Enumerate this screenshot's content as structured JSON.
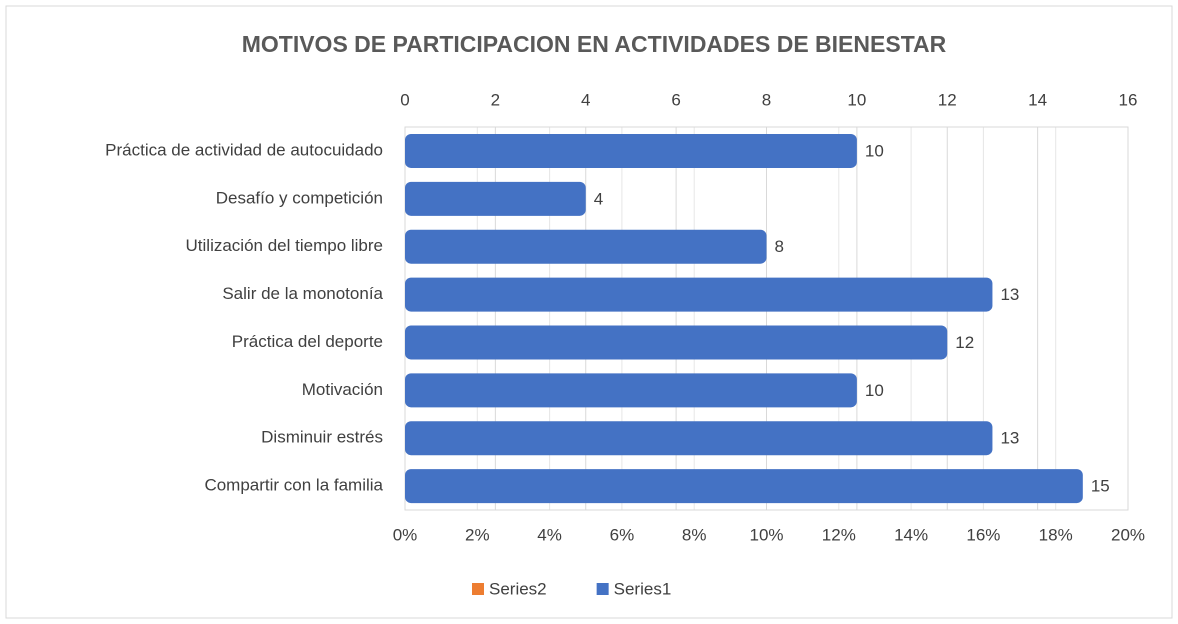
{
  "chart_data": {
    "type": "bar",
    "orientation": "horizontal",
    "title": "MOTIVOS DE PARTICIPACION EN ACTIVIDADES DE BIENESTAR",
    "categories": [
      "Práctica de actividad de autocuidado",
      "Desafío y competición",
      "Utilización del tiempo libre",
      "Salir de la monotonía",
      "Práctica del deporte",
      "Motivación",
      "Disminuir estrés",
      "Compartir con la familia"
    ],
    "series": [
      {
        "name": "Series2",
        "color": "#ed7d31",
        "axis": "x2",
        "values": [
          null,
          null,
          null,
          null,
          null,
          null,
          null,
          null
        ]
      },
      {
        "name": "Series1",
        "color": "#4472c4",
        "values": [
          10,
          4,
          8,
          13,
          12,
          10,
          13,
          15
        ]
      }
    ],
    "xlim": [
      0,
      16
    ],
    "xticks": [
      0,
      2,
      4,
      6,
      8,
      10,
      12,
      14,
      16
    ],
    "x2lim": [
      0,
      20
    ],
    "x2ticks": [
      {
        "value": 0,
        "label": "0%"
      },
      {
        "value": 2,
        "label": "2%"
      },
      {
        "value": 4,
        "label": "4%"
      },
      {
        "value": 6,
        "label": "6%"
      },
      {
        "value": 8,
        "label": "8%"
      },
      {
        "value": 10,
        "label": "10%"
      },
      {
        "value": 12,
        "label": "12%"
      },
      {
        "value": 14,
        "label": "14%"
      },
      {
        "value": 16,
        "label": "16%"
      },
      {
        "value": 18,
        "label": "18%"
      },
      {
        "value": 20,
        "label": "20%"
      }
    ],
    "grid": true,
    "legend": "bottom"
  }
}
